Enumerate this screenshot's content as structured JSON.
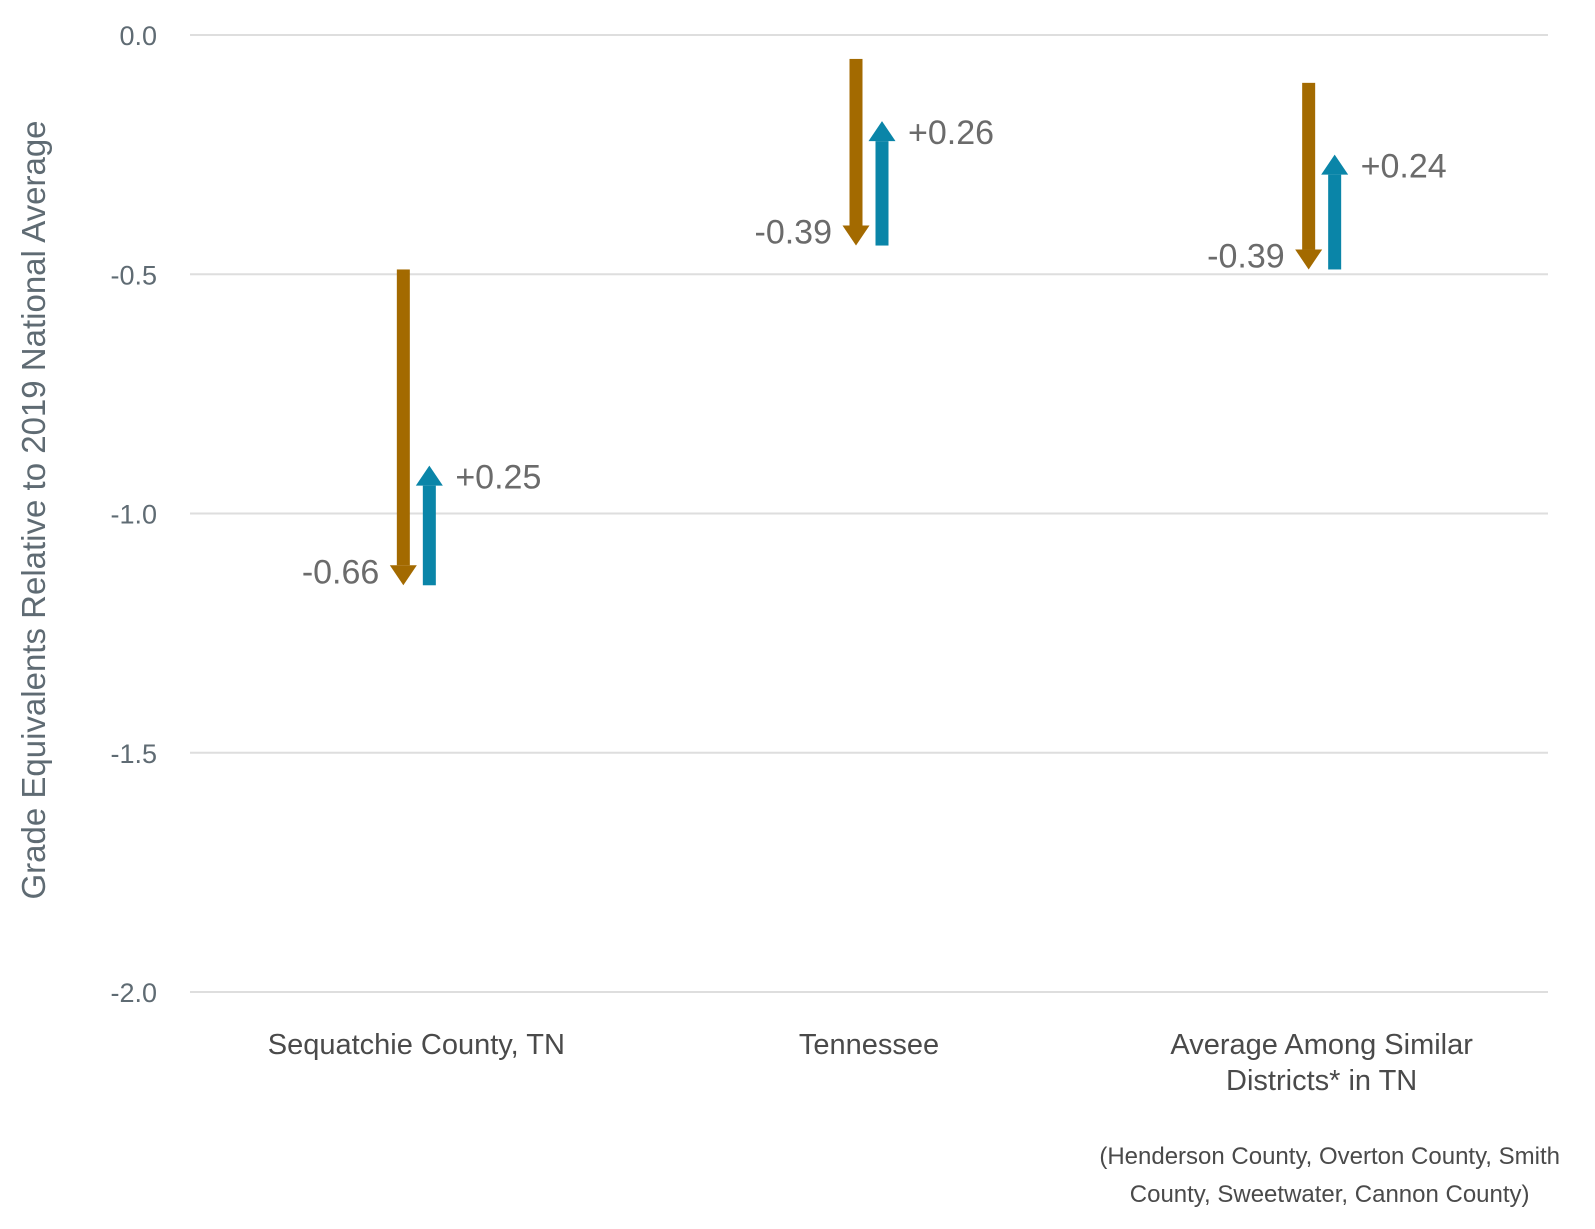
{
  "chart_data": {
    "type": "arrow",
    "ylabel": "Grade Equivalents Relative to 2019 National Average",
    "ylim": [
      -2.0,
      0.0
    ],
    "yticks": [
      {
        "value": 0.0,
        "label": "0.0"
      },
      {
        "value": -0.5,
        "label": "-0.5"
      },
      {
        "value": -1.0,
        "label": "-1.0"
      },
      {
        "value": -1.5,
        "label": "-1.5"
      },
      {
        "value": -2.0,
        "label": "-2.0"
      }
    ],
    "grid": true,
    "colors": {
      "decline": "#a36a00",
      "recovery": "#0a85a8"
    },
    "groups": [
      {
        "category_lines": [
          "Sequatchie County, TN"
        ],
        "start": -0.49,
        "decline": -0.66,
        "decline_label": "-0.66",
        "recovery": 0.25,
        "recovery_label": "+0.25"
      },
      {
        "category_lines": [
          "Tennessee"
        ],
        "start": -0.05,
        "decline": -0.39,
        "decline_label": "-0.39",
        "recovery": 0.26,
        "recovery_label": "+0.26"
      },
      {
        "category_lines": [
          "Average Among Similar",
          "Districts* in TN"
        ],
        "start": -0.1,
        "decline": -0.39,
        "decline_label": "-0.39",
        "recovery": 0.24,
        "recovery_label": "+0.24"
      }
    ],
    "footnote_lines": [
      "(Henderson County, Overton County, Smith",
      "County, Sweetwater, Cannon County)"
    ]
  }
}
